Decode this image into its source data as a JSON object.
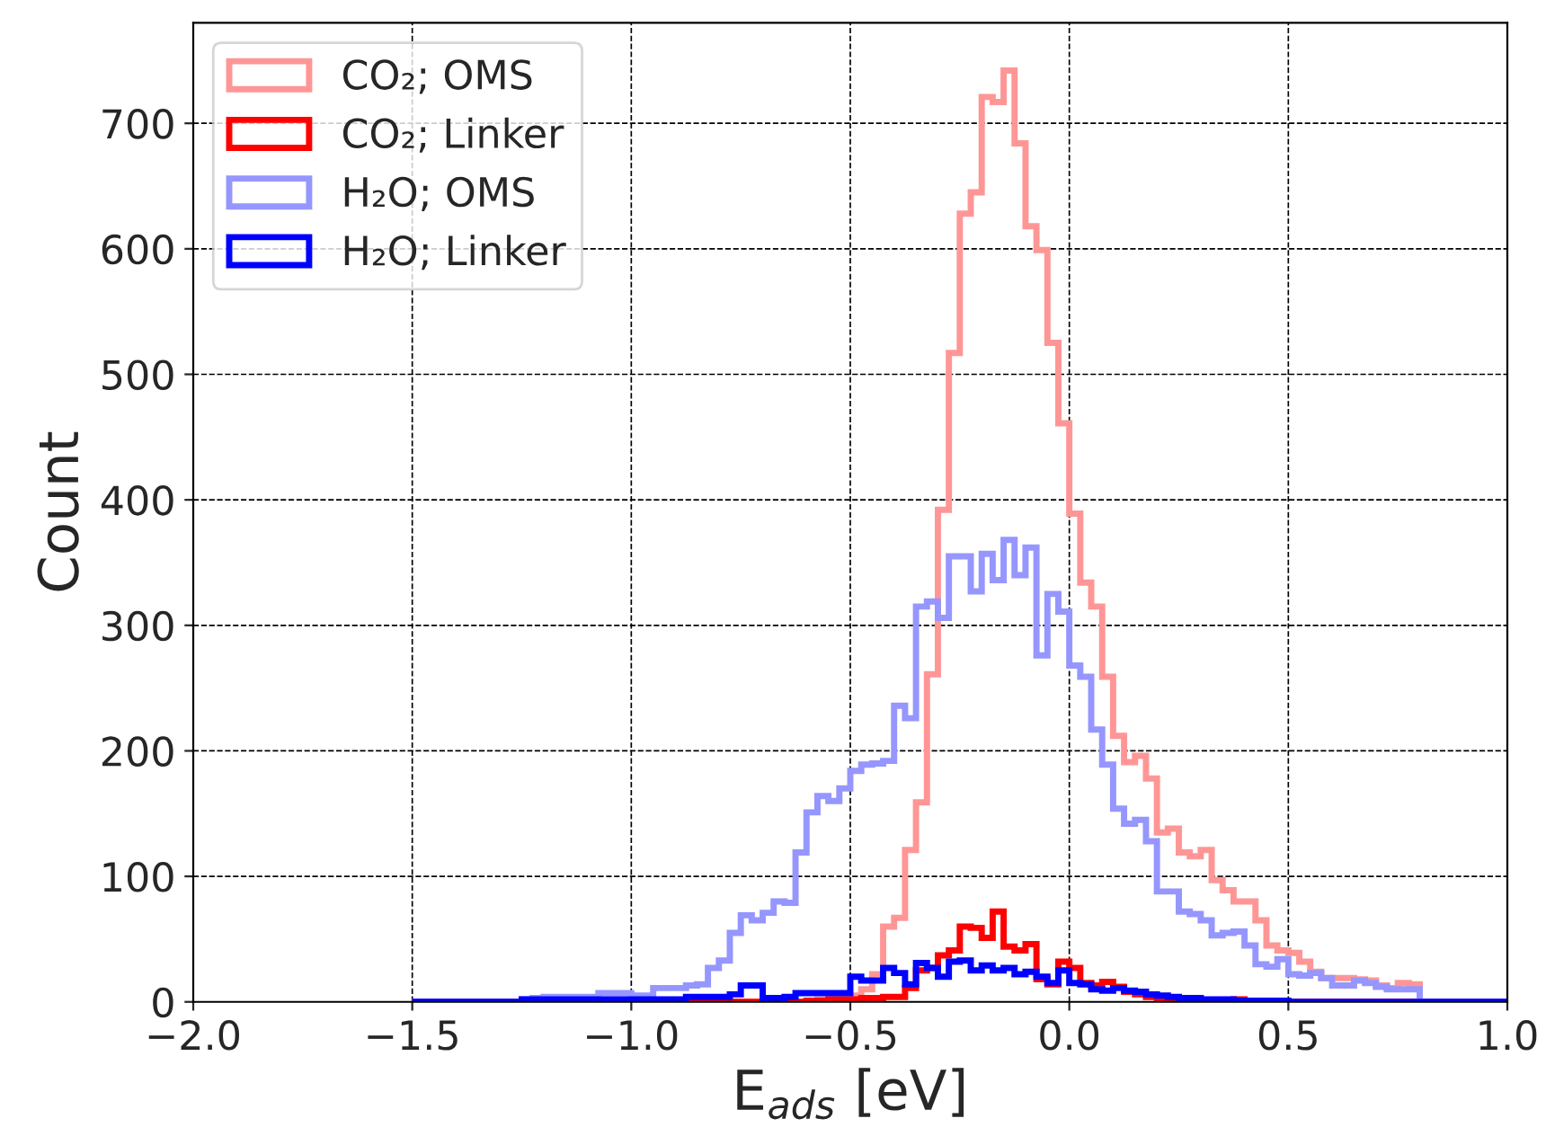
{
  "chart_data": {
    "type": "histogram",
    "xlabel": "E$_{ads}$ [eV]",
    "ylabel": "Count",
    "bins": [
      -1.5,
      -1.475,
      -1.45,
      -1.425,
      -1.4,
      -1.375,
      -1.35,
      -1.325,
      -1.3,
      -1.275,
      -1.25,
      -1.225,
      -1.2,
      -1.175,
      -1.15,
      -1.125,
      -1.1,
      -1.075,
      -1.05,
      -1.025,
      -1.0,
      -0.975,
      -0.95,
      -0.925,
      -0.9,
      -0.875,
      -0.85,
      -0.825,
      -0.8,
      -0.775,
      -0.75,
      -0.725,
      -0.7,
      -0.675,
      -0.65,
      -0.625,
      -0.6,
      -0.575,
      -0.55,
      -0.525,
      -0.5,
      -0.475,
      -0.45,
      -0.425,
      -0.4,
      -0.375,
      -0.35,
      -0.325,
      -0.3,
      -0.275,
      -0.25,
      -0.225,
      -0.2,
      -0.175,
      -0.15,
      -0.125,
      -0.1,
      -0.075,
      -0.05,
      -0.025,
      0.0,
      0.025,
      0.05,
      0.075,
      0.1,
      0.125,
      0.15,
      0.175,
      0.2,
      0.225,
      0.25,
      0.275,
      0.3,
      0.325,
      0.35,
      0.375,
      0.4,
      0.425,
      0.45,
      0.475,
      0.5,
      0.525,
      0.55,
      0.575,
      0.6,
      0.625,
      0.65,
      0.675,
      0.7,
      0.725,
      0.75,
      0.775,
      0.8,
      0.825,
      0.85,
      0.875,
      0.9,
      0.925,
      0.95,
      0.975,
      1.0
    ],
    "series": [
      {
        "name": "CO₂; OMS",
        "color": "#ff9696",
        "values": [
          0,
          0,
          0,
          0,
          0,
          0,
          0,
          0,
          0,
          0,
          0,
          0,
          0,
          0,
          0,
          0,
          0,
          0,
          0,
          0,
          0,
          0,
          0,
          0,
          0,
          0,
          0,
          0,
          0,
          0,
          0,
          0,
          0,
          0,
          0,
          0,
          1,
          2,
          3,
          4,
          5,
          10,
          22,
          60,
          67,
          121,
          159,
          261,
          392,
          517,
          628,
          645,
          721,
          717,
          742,
          684,
          618,
          599,
          525,
          461,
          389,
          334,
          315,
          259,
          212,
          191,
          196,
          178,
          135,
          138,
          119,
          116,
          121,
          97,
          89,
          80,
          80,
          65,
          45,
          41,
          39,
          32,
          24,
          19,
          19,
          19,
          18,
          17,
          13,
          11,
          15,
          14,
          0,
          0,
          0,
          0,
          0,
          0,
          0,
          0
        ]
      },
      {
        "name": "CO₂; Linker",
        "color": "#ff0000",
        "values": [
          0,
          0,
          0,
          0,
          0,
          0,
          0,
          0,
          0,
          0,
          0,
          0,
          0,
          0,
          0,
          0,
          0,
          0,
          0,
          0,
          0,
          0,
          0,
          0,
          0,
          0,
          0,
          0,
          0,
          0,
          0,
          0,
          0,
          0,
          0,
          0,
          1,
          1,
          2,
          2,
          2,
          3,
          3,
          4,
          4,
          11,
          25,
          27,
          37,
          41,
          60,
          59,
          51,
          72,
          44,
          41,
          46,
          18,
          14,
          32,
          27,
          15,
          13,
          16,
          12,
          8,
          6,
          4,
          3,
          3,
          2,
          2,
          1,
          1,
          1,
          2,
          1,
          0,
          0,
          0,
          0,
          0,
          0,
          0,
          0,
          0,
          0,
          0,
          0,
          0,
          0,
          0,
          0,
          0,
          0,
          0,
          0,
          0,
          0,
          0
        ]
      },
      {
        "name": "H₂O; OMS",
        "color": "#9696ff",
        "values": [
          0,
          0,
          0,
          0,
          0,
          0,
          0,
          0,
          0,
          0,
          2,
          3,
          4,
          4,
          4,
          4,
          4,
          7,
          7,
          7,
          5,
          5,
          11,
          11,
          11,
          13,
          14,
          27,
          33,
          55,
          69,
          65,
          71,
          80,
          79,
          119,
          151,
          164,
          160,
          170,
          184,
          189,
          190,
          192,
          236,
          226,
          315,
          319,
          306,
          355,
          355,
          327,
          357,
          336,
          368,
          340,
          362,
          276,
          325,
          311,
          268,
          259,
          217,
          189,
          154,
          142,
          145,
          128,
          88,
          88,
          72,
          70,
          65,
          53,
          55,
          56,
          45,
          30,
          28,
          34,
          22,
          21,
          23,
          19,
          13,
          13,
          17,
          15,
          12,
          10,
          10,
          10,
          0,
          0,
          0,
          0,
          0,
          0,
          0,
          0
        ]
      },
      {
        "name": "H₂O; Linker",
        "color": "#0000ff",
        "values": [
          0,
          0,
          0,
          0,
          0,
          0,
          0,
          0,
          0,
          0,
          2,
          2,
          2,
          2,
          2,
          2,
          2,
          2,
          2,
          2,
          2,
          2,
          2,
          2,
          2,
          4,
          4,
          4,
          4,
          6,
          13,
          13,
          3,
          3,
          4,
          7,
          7,
          7,
          7,
          7,
          20,
          17,
          17,
          27,
          23,
          14,
          31,
          27,
          20,
          32,
          33,
          25,
          29,
          25,
          27,
          22,
          24,
          20,
          15,
          25,
          15,
          14,
          10,
          9,
          11,
          9,
          8,
          6,
          5,
          4,
          3,
          3,
          2,
          2,
          2,
          1,
          1,
          1,
          1,
          1,
          0,
          0,
          0,
          0,
          0,
          0,
          0,
          0,
          0,
          0,
          0,
          0,
          0,
          0,
          0,
          0,
          0,
          0,
          0,
          0
        ]
      }
    ],
    "xlim": [
      -2.0,
      1.0
    ],
    "xticks": [
      {
        "value": -2.0,
        "label": "−2.0"
      },
      {
        "value": -1.5,
        "label": "−1.5"
      },
      {
        "value": -1.0,
        "label": "−1.0"
      },
      {
        "value": -0.5,
        "label": "−0.5"
      },
      {
        "value": 0.0,
        "label": "0.0"
      },
      {
        "value": 0.5,
        "label": "0.5"
      },
      {
        "value": 1.0,
        "label": "1.0"
      }
    ],
    "ylim": [
      0,
      780
    ],
    "yticks": [
      0,
      100,
      200,
      300,
      400,
      500,
      600,
      700
    ],
    "grid": true,
    "legend": "top left",
    "line_style": "solid"
  }
}
